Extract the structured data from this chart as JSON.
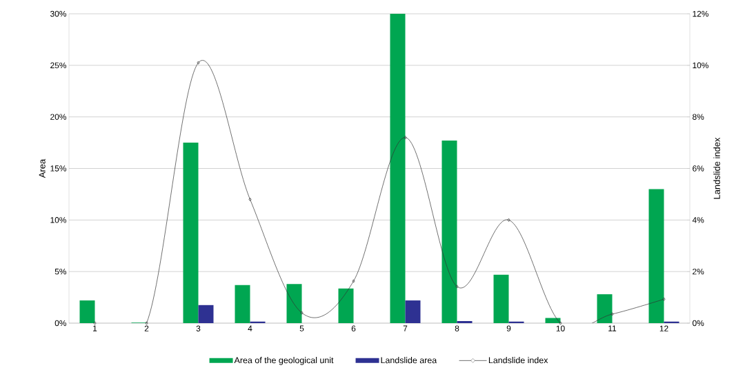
{
  "chart_data": {
    "type": "bar",
    "ylabel": "Area",
    "y2label": "Landslide index",
    "categories": [
      "1",
      "2",
      "3",
      "4",
      "5",
      "6",
      "7",
      "8",
      "9",
      "10",
      "11",
      "12"
    ],
    "series": [
      {
        "name": "Area of the geological unit",
        "color": "#00a651",
        "values": [
          2.2,
          0.05,
          17.5,
          3.7,
          3.8,
          3.35,
          30,
          17.7,
          4.7,
          0.5,
          2.8,
          13.0
        ]
      },
      {
        "name": "Landslide area",
        "color": "#2e3192",
        "values": [
          0,
          0,
          1.75,
          0.15,
          0,
          0,
          2.2,
          0.2,
          0.15,
          0,
          0,
          0.15
        ]
      },
      {
        "name": "Landslide index",
        "type": "line",
        "axis": "y2",
        "color": "#333333",
        "marker": "diamond",
        "values": [
          0,
          0,
          10.1,
          4.8,
          0.4,
          1.63,
          7.2,
          1.42,
          4.0,
          0,
          0.35,
          0.93
        ]
      }
    ],
    "ylim": [
      0,
      30
    ],
    "yticks": [
      {
        "value": 0,
        "label": "0%"
      },
      {
        "value": 5,
        "label": "5%"
      },
      {
        "value": 10,
        "label": "10%"
      },
      {
        "value": 15,
        "label": "15%"
      },
      {
        "value": 20,
        "label": "20%"
      },
      {
        "value": 25,
        "label": "25%"
      },
      {
        "value": 30,
        "label": "30%"
      }
    ],
    "y2lim": [
      0,
      12
    ],
    "y2ticks": [
      {
        "value": 0,
        "label": "0%"
      },
      {
        "value": 2,
        "label": "2%"
      },
      {
        "value": 4,
        "label": "4%"
      },
      {
        "value": 6,
        "label": "6%"
      },
      {
        "value": 8,
        "label": "8%"
      },
      {
        "value": 10,
        "label": "10%"
      },
      {
        "value": 12,
        "label": "12%"
      }
    ],
    "grid": "y",
    "legend": "bottom"
  }
}
